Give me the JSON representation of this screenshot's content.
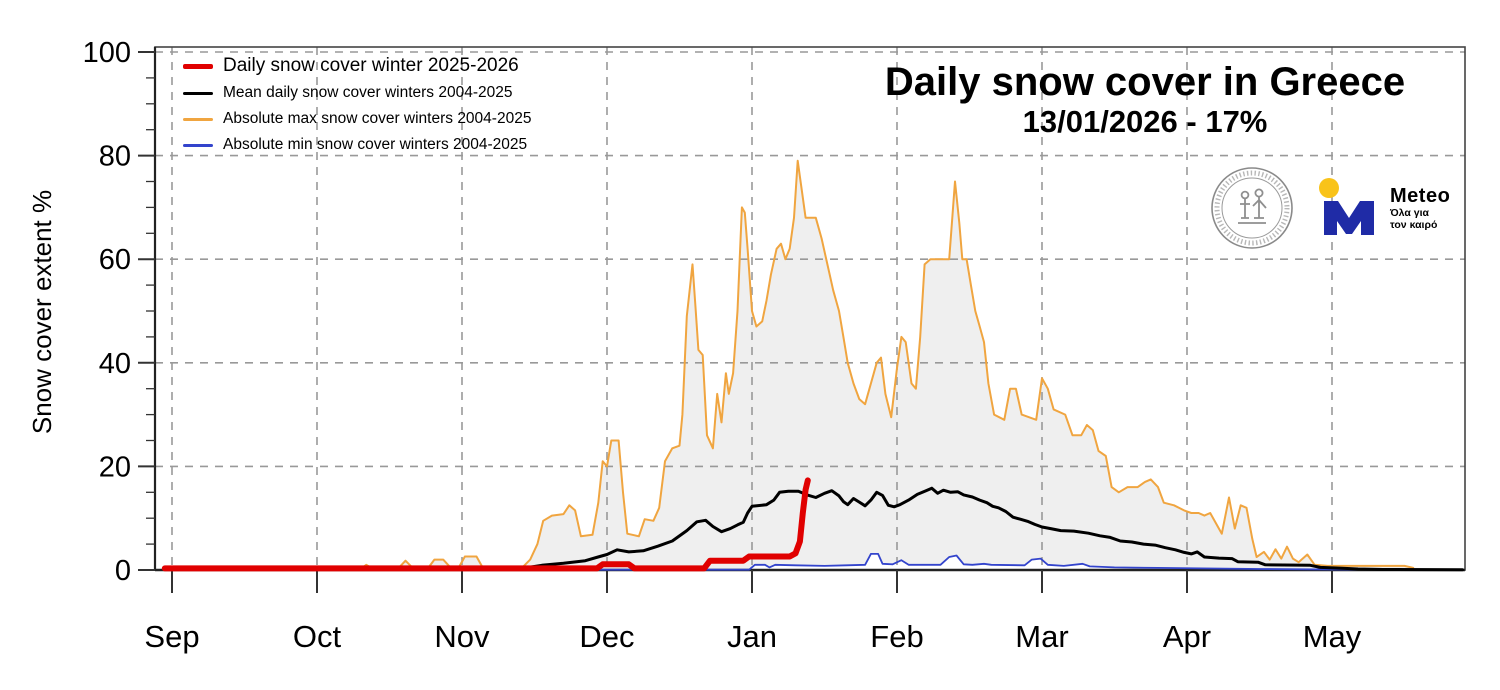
{
  "chart_data": {
    "type": "line",
    "title": "Daily snow cover in Greece",
    "subtitle": "13/01/2026 - 17%",
    "y_label": "Snow cover extent %",
    "x_unit": "months since Sep 1 (0 = Sep 1, 1 = Oct 1, ... 8 = May 1)",
    "x_tick_labels": [
      "Sep",
      "Oct",
      "Nov",
      "Dec",
      "Jan",
      "Feb",
      "Mar",
      "Apr",
      "May"
    ],
    "y_ticks": [
      0,
      20,
      40,
      60,
      80,
      100
    ],
    "y_minor_tick_step": 5,
    "ylim": [
      0,
      101
    ],
    "grid": "dashed",
    "grid_color": "#999999",
    "area_fill_between": "absolute max and absolute min",
    "area_fill_color": "#efefef",
    "series": [
      {
        "name": "Absolute max snow cover winters 2004-2025",
        "color": "#f0a540",
        "width": 2,
        "points": [
          [
            -0.05,
            0.2
          ],
          [
            1.3,
            0.2
          ],
          [
            1.34,
            1.0
          ],
          [
            1.38,
            0.3
          ],
          [
            1.56,
            0.3
          ],
          [
            1.61,
            1.8
          ],
          [
            1.66,
            0.4
          ],
          [
            1.77,
            0.5
          ],
          [
            1.81,
            2.0
          ],
          [
            1.87,
            2.0
          ],
          [
            1.92,
            0.5
          ],
          [
            1.98,
            0.6
          ],
          [
            2.02,
            2.6
          ],
          [
            2.1,
            2.6
          ],
          [
            2.14,
            0.6
          ],
          [
            2.25,
            0.5
          ],
          [
            2.42,
            0.6
          ],
          [
            2.47,
            2.0
          ],
          [
            2.52,
            5.0
          ],
          [
            2.56,
            9.5
          ],
          [
            2.62,
            10.5
          ],
          [
            2.7,
            10.8
          ],
          [
            2.74,
            12.5
          ],
          [
            2.78,
            11.5
          ],
          [
            2.82,
            6.5
          ],
          [
            2.9,
            6.8
          ],
          [
            2.94,
            13.0
          ],
          [
            2.97,
            21.0
          ],
          [
            3.0,
            20.0
          ],
          [
            3.03,
            25.0
          ],
          [
            3.08,
            25.0
          ],
          [
            3.11,
            15.0
          ],
          [
            3.14,
            7.0
          ],
          [
            3.22,
            6.5
          ],
          [
            3.26,
            9.8
          ],
          [
            3.32,
            9.5
          ],
          [
            3.36,
            12.0
          ],
          [
            3.4,
            21.0
          ],
          [
            3.45,
            23.5
          ],
          [
            3.5,
            24.0
          ],
          [
            3.52,
            30.0
          ],
          [
            3.55,
            49.0
          ],
          [
            3.59,
            59.0
          ],
          [
            3.61,
            51.0
          ],
          [
            3.63,
            42.5
          ],
          [
            3.66,
            41.5
          ],
          [
            3.69,
            26.0
          ],
          [
            3.73,
            23.5
          ],
          [
            3.76,
            34.0
          ],
          [
            3.79,
            28.5
          ],
          [
            3.82,
            38.0
          ],
          [
            3.84,
            34.0
          ],
          [
            3.87,
            38.0
          ],
          [
            3.9,
            50.0
          ],
          [
            3.93,
            70.0
          ],
          [
            3.95,
            69.0
          ],
          [
            3.97,
            62.0
          ],
          [
            4.0,
            50.0
          ],
          [
            4.03,
            47.0
          ],
          [
            4.07,
            48.0
          ],
          [
            4.1,
            52.0
          ],
          [
            4.13,
            57.0
          ],
          [
            4.17,
            62.0
          ],
          [
            4.2,
            63.0
          ],
          [
            4.23,
            60.0
          ],
          [
            4.26,
            62.0
          ],
          [
            4.29,
            68.0
          ],
          [
            4.315,
            79.0
          ],
          [
            4.34,
            74.0
          ],
          [
            4.37,
            68.0
          ],
          [
            4.44,
            68.0
          ],
          [
            4.48,
            64.0
          ],
          [
            4.52,
            59.0
          ],
          [
            4.56,
            54.0
          ],
          [
            4.6,
            50.0
          ],
          [
            4.63,
            45.0
          ],
          [
            4.66,
            40.0
          ],
          [
            4.7,
            36.0
          ],
          [
            4.74,
            33.0
          ],
          [
            4.78,
            32.0
          ],
          [
            4.82,
            36.0
          ],
          [
            4.86,
            40.0
          ],
          [
            4.89,
            41.0
          ],
          [
            4.92,
            34.0
          ],
          [
            4.96,
            29.5
          ],
          [
            5.0,
            39.0
          ],
          [
            5.03,
            45.0
          ],
          [
            5.06,
            44.0
          ],
          [
            5.1,
            36.0
          ],
          [
            5.13,
            35.0
          ],
          [
            5.16,
            45.0
          ],
          [
            5.19,
            59.0
          ],
          [
            5.23,
            60.0
          ],
          [
            5.36,
            60.0
          ],
          [
            5.4,
            75.0
          ],
          [
            5.43,
            67.0
          ],
          [
            5.45,
            60.0
          ],
          [
            5.48,
            60.0
          ],
          [
            5.51,
            55.0
          ],
          [
            5.54,
            50.0
          ],
          [
            5.57,
            47.0
          ],
          [
            5.6,
            44.0
          ],
          [
            5.63,
            36.0
          ],
          [
            5.67,
            30.0
          ],
          [
            5.74,
            29.0
          ],
          [
            5.78,
            35.0
          ],
          [
            5.82,
            35.0
          ],
          [
            5.86,
            30.0
          ],
          [
            5.96,
            29.0
          ],
          [
            6.0,
            37.0
          ],
          [
            6.04,
            35.0
          ],
          [
            6.08,
            31.0
          ],
          [
            6.16,
            30.0
          ],
          [
            6.21,
            26.0
          ],
          [
            6.27,
            26.0
          ],
          [
            6.31,
            28.0
          ],
          [
            6.35,
            27.0
          ],
          [
            6.39,
            23.0
          ],
          [
            6.44,
            22.0
          ],
          [
            6.48,
            16.0
          ],
          [
            6.53,
            15.0
          ],
          [
            6.59,
            16.0
          ],
          [
            6.66,
            16.0
          ],
          [
            6.71,
            17.0
          ],
          [
            6.75,
            17.5
          ],
          [
            6.8,
            16.0
          ],
          [
            6.84,
            13.0
          ],
          [
            6.91,
            12.5
          ],
          [
            6.98,
            11.5
          ],
          [
            7.03,
            11.0
          ],
          [
            7.08,
            11.0
          ],
          [
            7.12,
            10.5
          ],
          [
            7.16,
            11.0
          ],
          [
            7.2,
            9.0
          ],
          [
            7.24,
            7.0
          ],
          [
            7.29,
            14.0
          ],
          [
            7.33,
            8.0
          ],
          [
            7.37,
            12.5
          ],
          [
            7.41,
            12.0
          ],
          [
            7.45,
            6.0
          ],
          [
            7.48,
            2.5
          ],
          [
            7.53,
            3.5
          ],
          [
            7.57,
            2.0
          ],
          [
            7.61,
            4.0
          ],
          [
            7.65,
            2.2
          ],
          [
            7.69,
            4.5
          ],
          [
            7.73,
            2.2
          ],
          [
            7.77,
            1.5
          ],
          [
            7.83,
            3.0
          ],
          [
            7.88,
            1.0
          ],
          [
            7.97,
            0.8
          ],
          [
            8.5,
            0.8
          ],
          [
            8.56,
            0.4
          ]
        ]
      },
      {
        "name": "Absolute min snow cover winters 2004-2025",
        "color": "#3344cc",
        "width": 1.8,
        "points": [
          [
            -0.05,
            0.05
          ],
          [
            3.98,
            0.05
          ],
          [
            4.02,
            1.0
          ],
          [
            4.09,
            1.0
          ],
          [
            4.12,
            0.5
          ],
          [
            4.16,
            1.0
          ],
          [
            4.3,
            0.9
          ],
          [
            4.5,
            0.8
          ],
          [
            4.65,
            0.9
          ],
          [
            4.78,
            1.0
          ],
          [
            4.82,
            3.1
          ],
          [
            4.87,
            3.1
          ],
          [
            4.9,
            1.2
          ],
          [
            4.97,
            1.1
          ],
          [
            5.03,
            1.9
          ],
          [
            5.08,
            1.0
          ],
          [
            5.3,
            1.0
          ],
          [
            5.36,
            2.5
          ],
          [
            5.41,
            2.8
          ],
          [
            5.46,
            1.1
          ],
          [
            5.52,
            1.0
          ],
          [
            5.6,
            1.2
          ],
          [
            5.65,
            1.0
          ],
          [
            5.88,
            0.9
          ],
          [
            5.93,
            2.0
          ],
          [
            5.99,
            2.2
          ],
          [
            6.04,
            1.0
          ],
          [
            6.15,
            0.8
          ],
          [
            6.28,
            1.2
          ],
          [
            6.33,
            0.7
          ],
          [
            6.5,
            0.5
          ],
          [
            6.8,
            0.4
          ],
          [
            7.1,
            0.3
          ],
          [
            7.5,
            0.2
          ],
          [
            8.0,
            0.1
          ],
          [
            8.56,
            0.1
          ]
        ]
      },
      {
        "name": "Mean daily snow cover winters 2004-2025",
        "color": "#000000",
        "width": 3,
        "points": [
          [
            -0.05,
            0.1
          ],
          [
            2.3,
            0.15
          ],
          [
            2.42,
            0.35
          ],
          [
            2.55,
            0.9
          ],
          [
            2.7,
            1.3
          ],
          [
            2.85,
            1.8
          ],
          [
            2.95,
            2.6
          ],
          [
            3.0,
            3.0
          ],
          [
            3.07,
            3.9
          ],
          [
            3.15,
            3.5
          ],
          [
            3.25,
            3.7
          ],
          [
            3.35,
            4.6
          ],
          [
            3.45,
            5.6
          ],
          [
            3.55,
            7.6
          ],
          [
            3.62,
            9.3
          ],
          [
            3.68,
            9.6
          ],
          [
            3.73,
            8.4
          ],
          [
            3.79,
            7.4
          ],
          [
            3.85,
            8.0
          ],
          [
            3.9,
            8.7
          ],
          [
            3.94,
            9.2
          ],
          [
            3.97,
            11.0
          ],
          [
            4.0,
            12.3
          ],
          [
            4.1,
            12.6
          ],
          [
            4.15,
            13.5
          ],
          [
            4.19,
            15.0
          ],
          [
            4.25,
            15.2
          ],
          [
            4.32,
            15.2
          ],
          [
            4.38,
            14.5
          ],
          [
            4.44,
            14.0
          ],
          [
            4.5,
            14.8
          ],
          [
            4.55,
            15.3
          ],
          [
            4.6,
            14.3
          ],
          [
            4.63,
            13.2
          ],
          [
            4.66,
            12.6
          ],
          [
            4.7,
            13.8
          ],
          [
            4.74,
            13.1
          ],
          [
            4.78,
            12.4
          ],
          [
            4.82,
            13.5
          ],
          [
            4.86,
            15.0
          ],
          [
            4.9,
            14.4
          ],
          [
            4.94,
            12.5
          ],
          [
            4.98,
            12.2
          ],
          [
            5.02,
            12.6
          ],
          [
            5.08,
            13.5
          ],
          [
            5.14,
            14.6
          ],
          [
            5.2,
            15.3
          ],
          [
            5.24,
            15.8
          ],
          [
            5.28,
            14.8
          ],
          [
            5.32,
            15.4
          ],
          [
            5.37,
            15.0
          ],
          [
            5.42,
            15.1
          ],
          [
            5.46,
            14.5
          ],
          [
            5.52,
            14.1
          ],
          [
            5.57,
            13.5
          ],
          [
            5.62,
            13.0
          ],
          [
            5.66,
            12.3
          ],
          [
            5.7,
            12.0
          ],
          [
            5.75,
            11.3
          ],
          [
            5.8,
            10.2
          ],
          [
            5.85,
            9.8
          ],
          [
            5.9,
            9.4
          ],
          [
            5.95,
            8.8
          ],
          [
            6.0,
            8.3
          ],
          [
            6.06,
            8.0
          ],
          [
            6.13,
            7.6
          ],
          [
            6.22,
            7.5
          ],
          [
            6.32,
            7.1
          ],
          [
            6.4,
            6.6
          ],
          [
            6.47,
            6.3
          ],
          [
            6.54,
            5.6
          ],
          [
            6.62,
            5.4
          ],
          [
            6.7,
            5.0
          ],
          [
            6.78,
            4.8
          ],
          [
            6.85,
            4.3
          ],
          [
            6.92,
            3.9
          ],
          [
            6.98,
            3.4
          ],
          [
            7.03,
            3.1
          ],
          [
            7.07,
            3.5
          ],
          [
            7.12,
            2.5
          ],
          [
            7.22,
            2.3
          ],
          [
            7.31,
            2.2
          ],
          [
            7.35,
            1.6
          ],
          [
            7.49,
            1.5
          ],
          [
            7.54,
            1.0
          ],
          [
            7.85,
            0.9
          ],
          [
            7.92,
            0.5
          ],
          [
            8.07,
            0.35
          ],
          [
            8.18,
            0.2
          ],
          [
            8.35,
            0.1
          ],
          [
            8.9,
            0.05
          ]
        ]
      },
      {
        "name": "Daily snow cover winter 2025-2026",
        "color": "#e00000",
        "width": 6,
        "points": [
          [
            -0.05,
            0.3
          ],
          [
            2.93,
            0.3
          ],
          [
            2.97,
            1.1
          ],
          [
            3.15,
            1.1
          ],
          [
            3.19,
            0.3
          ],
          [
            3.67,
            0.3
          ],
          [
            3.71,
            1.8
          ],
          [
            3.94,
            1.8
          ],
          [
            3.98,
            2.6
          ],
          [
            4.26,
            2.6
          ],
          [
            4.3,
            3.2
          ],
          [
            4.33,
            5.5
          ],
          [
            4.35,
            11.0
          ],
          [
            4.37,
            15.5
          ],
          [
            4.385,
            17.3
          ]
        ]
      }
    ],
    "legend_order": [
      3,
      2,
      0,
      1
    ],
    "legend_position": "top-left"
  },
  "logos": {
    "meteo": {
      "name": "Meteo",
      "tagline_line1": "Όλα για",
      "tagline_line2": "τον καιρό",
      "m_color": "#1f2ba6",
      "dot_color": "#f9c319",
      "name_color": "#2b3a9f",
      "tagline_color": "#d9862e"
    }
  }
}
